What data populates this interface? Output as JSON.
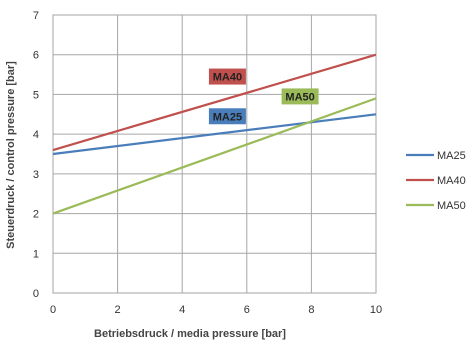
{
  "chart_data": {
    "type": "line",
    "xlabel": "Betriebsdruck / media pressure [bar]",
    "ylabel": "Steuerdruck / control pressure [bar]",
    "xlim": [
      0,
      10
    ],
    "ylim": [
      0,
      7
    ],
    "xticks": [
      "0",
      "2",
      "4",
      "6",
      "8",
      "10"
    ],
    "yticks": [
      "0",
      "1",
      "2",
      "3",
      "4",
      "5",
      "6",
      "7"
    ],
    "grid": true,
    "legend_position": "right",
    "series": [
      {
        "name": "MA25",
        "color": "#4a7ebb",
        "x": [
          0,
          10
        ],
        "y": [
          3.5,
          4.5
        ],
        "tag": "MA25",
        "tag_color": "#4a7ebb"
      },
      {
        "name": "MA40",
        "color": "#c0504d",
        "x": [
          0,
          10
        ],
        "y": [
          3.6,
          6.0
        ],
        "tag": "MA40",
        "tag_color": "#c0504d"
      },
      {
        "name": "MA50",
        "color": "#9bbb59",
        "x": [
          0,
          10
        ],
        "y": [
          2.0,
          4.9
        ],
        "tag": "MA50",
        "tag_color": "#9bbb59"
      }
    ]
  }
}
